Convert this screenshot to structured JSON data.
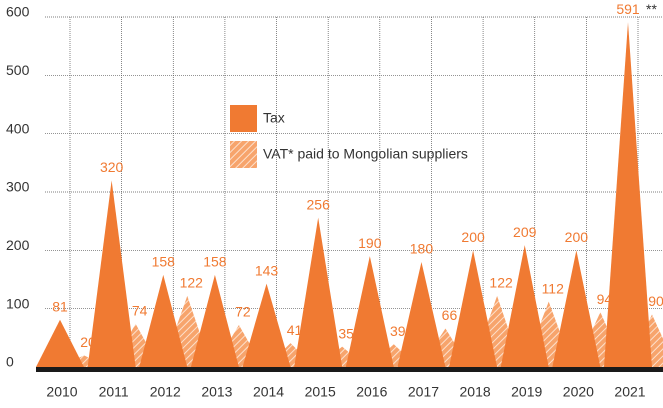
{
  "chart_data": {
    "type": "bar",
    "categories": [
      "2010",
      "2011",
      "2012",
      "2013",
      "2014",
      "2015",
      "2016",
      "2017",
      "2018",
      "2019",
      "2020",
      "2021"
    ],
    "series": [
      {
        "name": "Tax",
        "color": "#f07a32",
        "values": [
          81,
          320,
          158,
          158,
          143,
          256,
          190,
          180,
          200,
          209,
          200,
          591
        ]
      },
      {
        "name": "VAT* paid to Mongolian suppliers",
        "color": "#f7a46c",
        "values": [
          20,
          74,
          122,
          72,
          41,
          35,
          39,
          66,
          122,
          112,
          94,
          90
        ]
      }
    ],
    "annotation": "**",
    "ylim": [
      0,
      600
    ],
    "yticks": [
      0,
      100,
      200,
      300,
      400,
      500,
      600
    ],
    "grid": true,
    "legend_position": "center"
  }
}
